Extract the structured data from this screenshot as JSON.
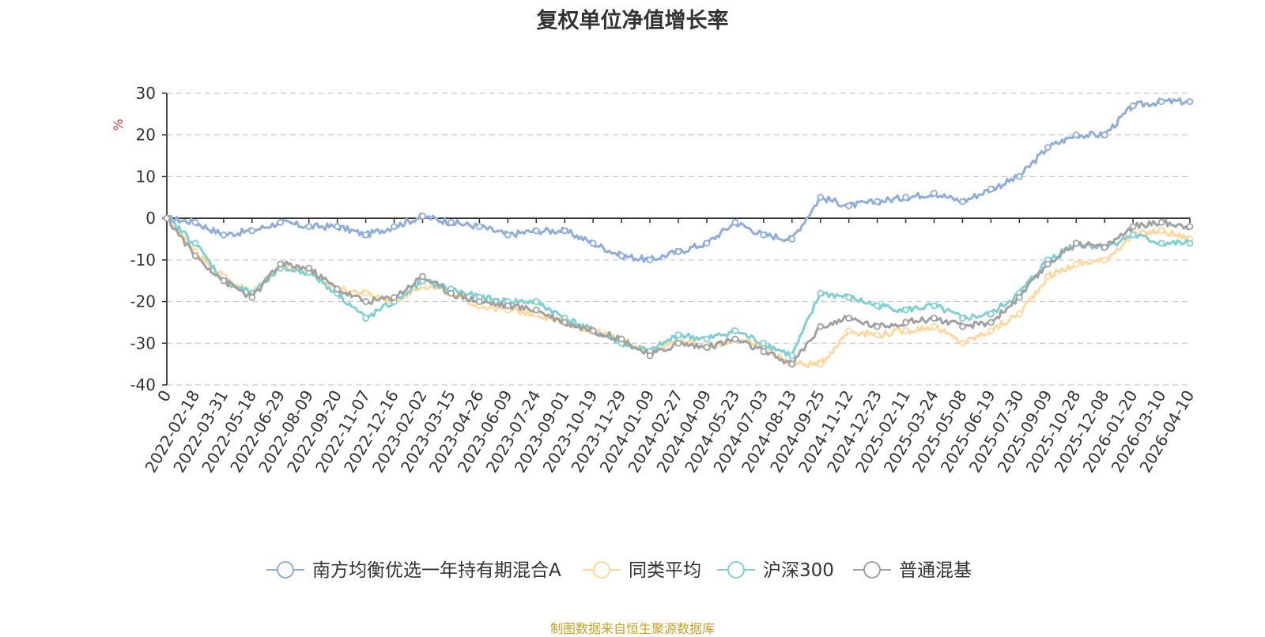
{
  "chart_data": {
    "type": "line",
    "title": "复权单位净值增长率",
    "ylabel": "%",
    "xlabel": "",
    "ylim": [
      -40,
      30
    ],
    "yticks": [
      30,
      20,
      10,
      0,
      -10,
      -20,
      -30,
      -40
    ],
    "grid": true,
    "legend_position": "bottom",
    "categories": [
      "0",
      "2022-02-18",
      "2022-03-31",
      "2022-05-18",
      "2022-06-29",
      "2022-08-09",
      "2022-09-20",
      "2022-11-07",
      "2022-12-16",
      "2023-02-02",
      "2023-03-15",
      "2023-04-26",
      "2023-06-09",
      "2023-07-24",
      "2023-09-01",
      "2023-10-19",
      "2023-11-29",
      "2024-01-09",
      "2024-02-27",
      "2024-04-09",
      "2024-05-23",
      "2024-07-03",
      "2024-08-13",
      "2024-09-25",
      "2024-11-12",
      "2024-12-23",
      "2025-02-11",
      "2025-03-24",
      "2025-05-08",
      "2025-06-19",
      "2025-07-30",
      "2025-09-09",
      "2025-10-28",
      "2025-12-08",
      "2026-01-20",
      "2026-03-10",
      "2026-04-10"
    ],
    "series": [
      {
        "name": "南方均衡优选一年持有期混合A",
        "color": "#8eaddb",
        "values": [
          0,
          -1,
          -4,
          -3,
          -1,
          -2,
          -2,
          -4,
          -2,
          0.5,
          -1,
          -2,
          -4,
          -3,
          -3,
          -6,
          -9,
          -10,
          -8,
          -6,
          -1,
          -4,
          -5,
          5,
          3,
          4,
          5,
          6,
          4,
          7,
          10,
          17,
          20,
          20,
          27,
          28,
          28
        ]
      },
      {
        "name": "同类平均",
        "color": "#ffd89a",
        "values": [
          0,
          -8,
          -14,
          -18,
          -11,
          -13,
          -17,
          -18,
          -20,
          -16,
          -18,
          -21,
          -22,
          -23,
          -25,
          -27,
          -29,
          -32,
          -29,
          -31,
          -29,
          -31,
          -35,
          -35,
          -27,
          -28,
          -27,
          -26,
          -30,
          -27,
          -23,
          -14,
          -11,
          -10,
          -4,
          -3,
          -5
        ]
      },
      {
        "name": "沪深300",
        "color": "#7fd0d3",
        "values": [
          0,
          -6,
          -15,
          -18,
          -12,
          -13,
          -18,
          -24,
          -20,
          -15,
          -17,
          -19,
          -20,
          -20,
          -24,
          -27,
          -30,
          -32,
          -28,
          -29,
          -27,
          -30,
          -33,
          -18,
          -19,
          -21,
          -22,
          -21,
          -24,
          -23,
          -18,
          -10,
          -6,
          -7,
          -4,
          -6,
          -6
        ]
      },
      {
        "name": "普通混基",
        "color": "#a1a1a1",
        "values": [
          0,
          -9,
          -15,
          -19,
          -11,
          -12,
          -17,
          -20,
          -19,
          -14,
          -18,
          -20,
          -21,
          -22,
          -25,
          -27,
          -29,
          -33,
          -30,
          -31,
          -29,
          -32,
          -35,
          -26,
          -24,
          -26,
          -25,
          -24,
          -26,
          -25,
          -19,
          -11,
          -6,
          -7,
          -2,
          -1,
          -2
        ]
      }
    ]
  },
  "source": {
    "text": "制图数据来自恒生聚源数据库",
    "color": "#c8a028"
  }
}
